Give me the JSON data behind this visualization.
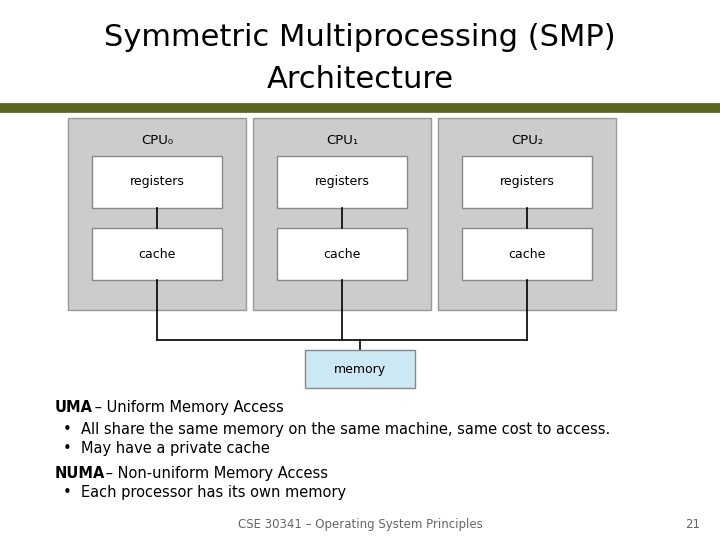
{
  "title_line1": "Symmetric Multiprocessing (SMP)",
  "title_line2": "Architecture",
  "title_fontsize": 22,
  "title_color": "#000000",
  "divider_color": "#5a6620",
  "cpu_labels": [
    "CPU₀",
    "CPU₁",
    "CPU₂"
  ],
  "cpu_box_color": "#cccccc",
  "register_box_color": "#ffffff",
  "cache_box_color": "#ffffff",
  "memory_box_color": "#cce8f4",
  "footer_text": "CSE 30341 – Operating System Principles",
  "footer_page": "21",
  "uma_bold": "UMA",
  "uma_rest": " – Uniform Memory Access",
  "bullet1": "All share the same memory on the same machine, same cost to access.",
  "bullet2": "May have a private cache",
  "numa_bold": "NUMA",
  "numa_rest": " – Non-uniform Memory Access",
  "bullet3": "Each processor has its own memory",
  "text_fontsize": 10.5,
  "small_fontsize": 8.5,
  "background_color": "#ffffff"
}
